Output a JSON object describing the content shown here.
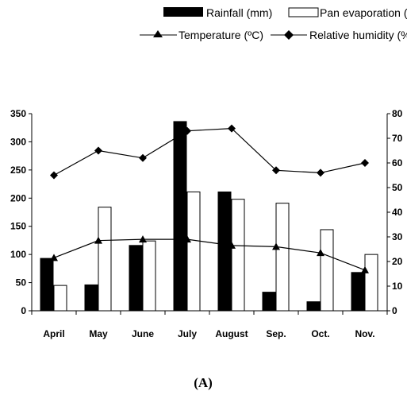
{
  "chart_data": {
    "type": "bar",
    "caption": "(A)",
    "categories": [
      "April",
      "May",
      "June",
      "July",
      "August",
      "Sep.",
      "Oct.",
      "Nov."
    ],
    "series": [
      {
        "name": "Rainfall (mm)",
        "kind": "bar",
        "axis": "left",
        "fill": "#000000",
        "values": [
          93,
          46,
          116,
          336,
          211,
          33,
          16,
          68
        ]
      },
      {
        "name": "Pan evaporation (mm)",
        "kind": "bar",
        "axis": "left",
        "fill": "#ffffff",
        "values": [
          45,
          184,
          124,
          211,
          198,
          191,
          144,
          100
        ]
      },
      {
        "name": "Temperature (ºC)",
        "kind": "line",
        "axis": "right",
        "marker": "triangle",
        "values": [
          21.5,
          28.5,
          29.0,
          29.0,
          26.5,
          26.0,
          23.5,
          16.5
        ]
      },
      {
        "name": "Relative humidity (%)",
        "kind": "line",
        "axis": "right",
        "marker": "diamond",
        "values": [
          55,
          65,
          62,
          73,
          74,
          57,
          56,
          60
        ]
      }
    ],
    "left_axis": {
      "ylim": [
        0,
        350
      ],
      "ticks": [
        0,
        50,
        100,
        150,
        200,
        250,
        300,
        350
      ]
    },
    "right_axis": {
      "ylim": [
        0,
        80
      ],
      "ticks": [
        0,
        10,
        20,
        30,
        40,
        50,
        60,
        70,
        80
      ]
    },
    "grid": false,
    "legend_position": "top"
  }
}
